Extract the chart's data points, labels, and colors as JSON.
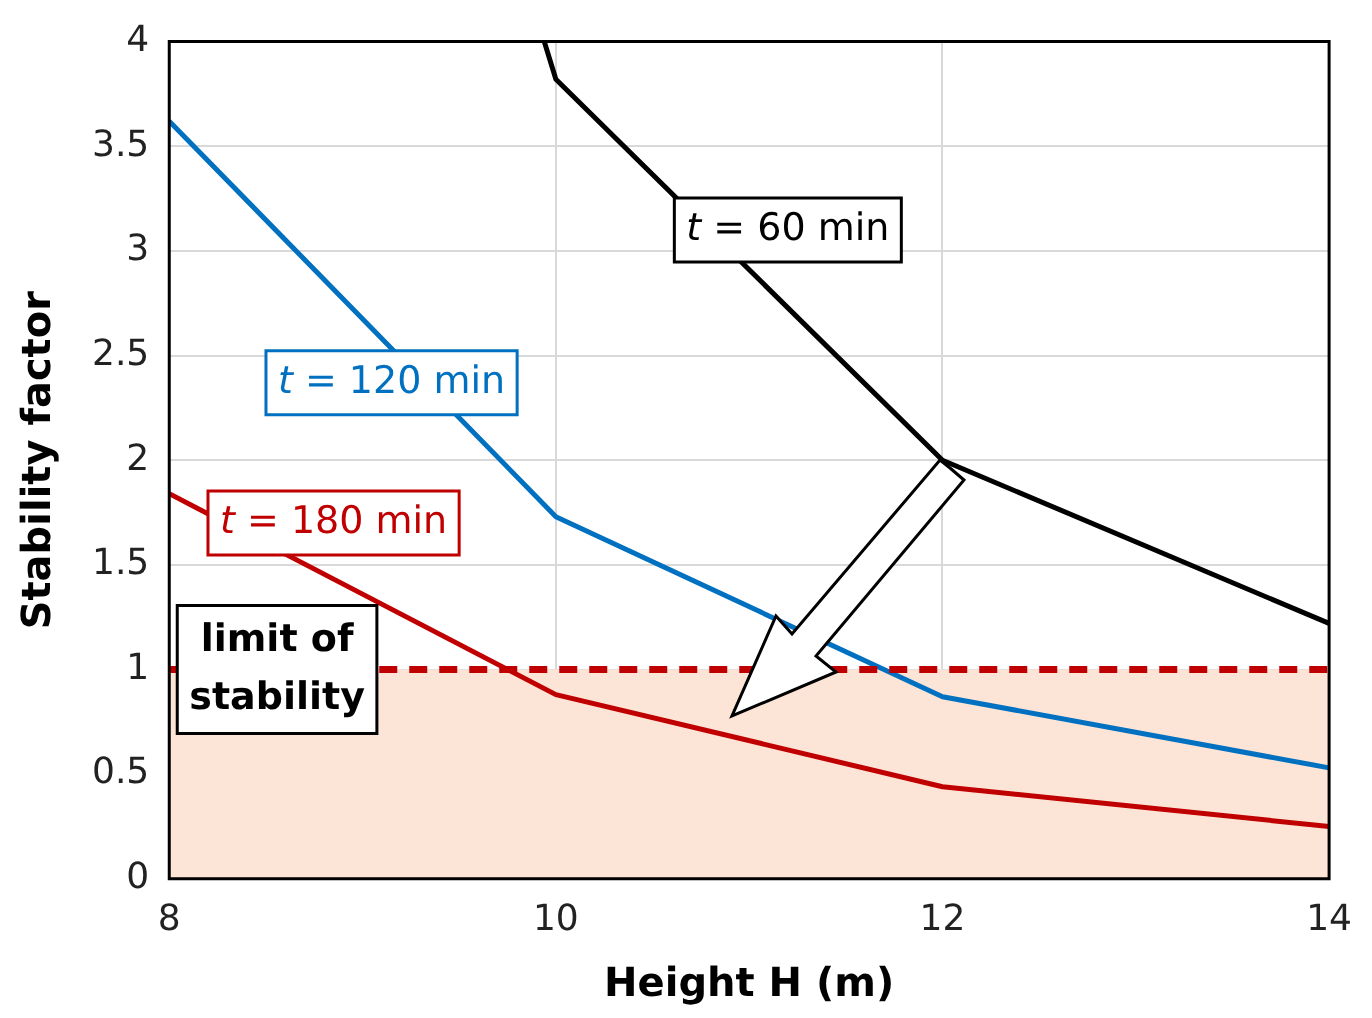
{
  "chart_data": {
    "type": "line",
    "xlabel": "Height H (m)",
    "ylabel": "Stability factor",
    "xlim": [
      8,
      14
    ],
    "xticks": [
      8,
      10,
      12,
      14
    ],
    "ylim": [
      0,
      4
    ],
    "yticks": [
      0,
      0.5,
      1,
      1.5,
      2,
      2.5,
      3,
      3.5,
      4
    ],
    "grid": true,
    "legend": false,
    "marker": "none",
    "line_style": "solid",
    "series": [
      {
        "name": "t = 60 min",
        "color": "#000000",
        "x": [
          9.94,
          10,
          12,
          14
        ],
        "values": [
          4,
          3.82,
          2.0,
          1.22
        ]
      },
      {
        "name": "t = 120 min",
        "color": "#0070c0",
        "x": [
          8,
          10,
          12,
          14
        ],
        "values": [
          3.62,
          1.73,
          0.87,
          0.53
        ]
      },
      {
        "name": "t = 180 min",
        "color": "#c00000",
        "x": [
          8,
          10,
          12,
          14
        ],
        "values": [
          1.84,
          0.88,
          0.44,
          0.25
        ]
      }
    ],
    "ref_lines": [
      {
        "axis": "y",
        "value": 1,
        "label": "limit of stability",
        "color": "#c00000",
        "line_style": "dashed"
      }
    ],
    "bands": [
      {
        "axis": "y",
        "from": 0,
        "to": 1,
        "color": "#fce4d6"
      }
    ]
  }
}
